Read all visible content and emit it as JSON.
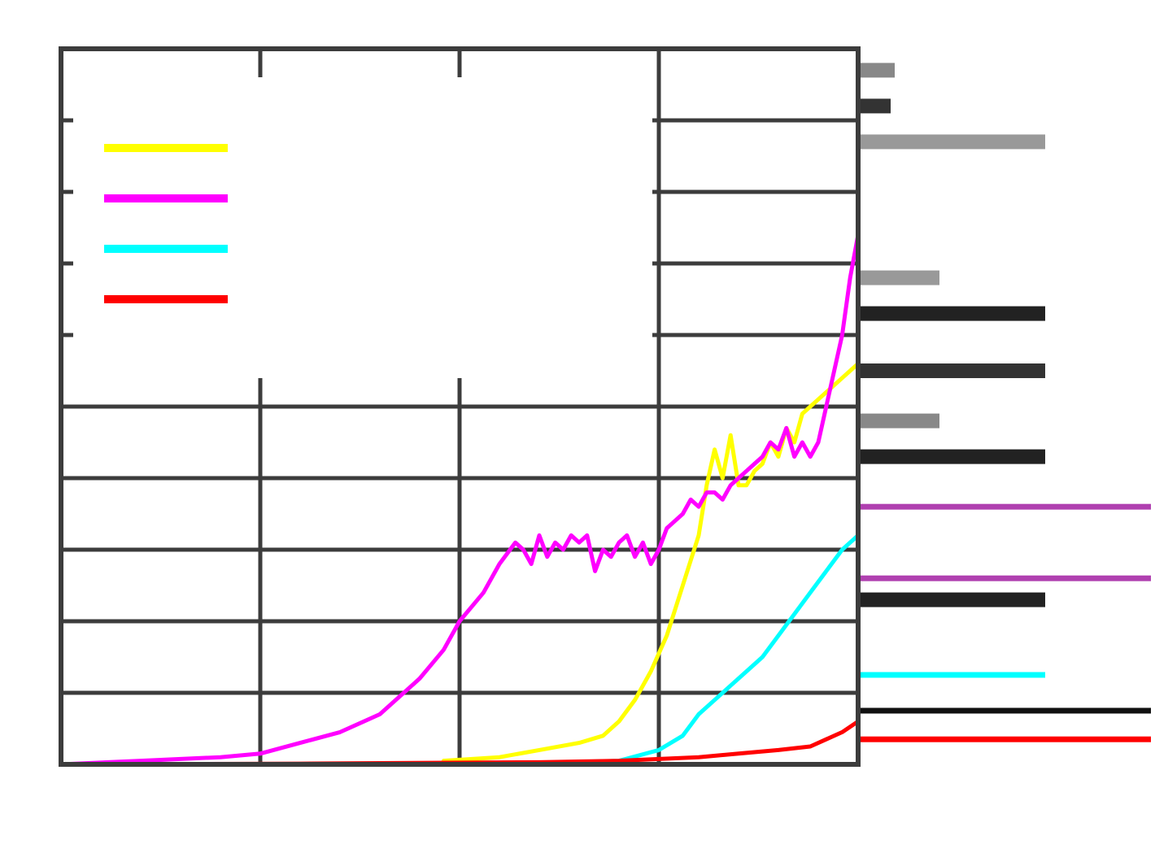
{
  "chart_data": {
    "type": "line",
    "title": "",
    "xlabel": "",
    "ylabel": "",
    "grid": true,
    "legend_placement": "top-left",
    "xlim": [
      0,
      100
    ],
    "ylim": [
      0,
      10
    ],
    "series": [
      {
        "color": "#ffff00",
        "points": [
          [
            48,
            0.05
          ],
          [
            55,
            0.1
          ],
          [
            60,
            0.2
          ],
          [
            65,
            0.3
          ],
          [
            68,
            0.4
          ],
          [
            70,
            0.6
          ],
          [
            72,
            0.9
          ],
          [
            74,
            1.3
          ],
          [
            76,
            1.8
          ],
          [
            78,
            2.5
          ],
          [
            80,
            3.2
          ],
          [
            81,
            3.9
          ],
          [
            82,
            4.4
          ],
          [
            83,
            4.0
          ],
          [
            84,
            4.6
          ],
          [
            85,
            3.9
          ],
          [
            86,
            3.9
          ],
          [
            87,
            4.1
          ],
          [
            88,
            4.2
          ],
          [
            89,
            4.5
          ],
          [
            90,
            4.3
          ],
          [
            91,
            4.7
          ],
          [
            92,
            4.5
          ],
          [
            93,
            4.9
          ],
          [
            94,
            5.0
          ],
          [
            95,
            5.1
          ],
          [
            96,
            5.2
          ],
          [
            97,
            5.3
          ],
          [
            98,
            5.4
          ],
          [
            99,
            5.5
          ],
          [
            100,
            5.6
          ]
        ]
      },
      {
        "color": "#ff00ff",
        "points": [
          [
            0,
            0
          ],
          [
            10,
            0.05
          ],
          [
            20,
            0.1
          ],
          [
            25,
            0.15
          ],
          [
            30,
            0.3
          ],
          [
            35,
            0.45
          ],
          [
            40,
            0.7
          ],
          [
            45,
            1.2
          ],
          [
            48,
            1.6
          ],
          [
            50,
            2.0
          ],
          [
            53,
            2.4
          ],
          [
            55,
            2.8
          ],
          [
            57,
            3.1
          ],
          [
            58,
            3.0
          ],
          [
            59,
            2.8
          ],
          [
            60,
            3.2
          ],
          [
            61,
            2.9
          ],
          [
            62,
            3.1
          ],
          [
            63,
            3.0
          ],
          [
            64,
            3.2
          ],
          [
            65,
            3.1
          ],
          [
            66,
            3.2
          ],
          [
            67,
            2.7
          ],
          [
            68,
            3.0
          ],
          [
            69,
            2.9
          ],
          [
            70,
            3.1
          ],
          [
            71,
            3.2
          ],
          [
            72,
            2.9
          ],
          [
            73,
            3.1
          ],
          [
            74,
            2.8
          ],
          [
            75,
            3.0
          ],
          [
            76,
            3.3
          ],
          [
            77,
            3.4
          ],
          [
            78,
            3.5
          ],
          [
            79,
            3.7
          ],
          [
            80,
            3.6
          ],
          [
            81,
            3.8
          ],
          [
            82,
            3.8
          ],
          [
            83,
            3.7
          ],
          [
            84,
            3.9
          ],
          [
            85,
            4.0
          ],
          [
            86,
            4.1
          ],
          [
            87,
            4.2
          ],
          [
            88,
            4.3
          ],
          [
            89,
            4.5
          ],
          [
            90,
            4.4
          ],
          [
            91,
            4.7
          ],
          [
            92,
            4.3
          ],
          [
            93,
            4.5
          ],
          [
            94,
            4.3
          ],
          [
            95,
            4.5
          ],
          [
            96,
            5.0
          ],
          [
            97,
            5.5
          ],
          [
            98,
            6.0
          ],
          [
            99,
            6.8
          ],
          [
            100,
            7.4
          ]
        ]
      },
      {
        "color": "#00ffff",
        "points": [
          [
            60,
            0.02
          ],
          [
            70,
            0.05
          ],
          [
            75,
            0.2
          ],
          [
            78,
            0.4
          ],
          [
            80,
            0.7
          ],
          [
            82,
            0.9
          ],
          [
            84,
            1.1
          ],
          [
            86,
            1.3
          ],
          [
            88,
            1.5
          ],
          [
            90,
            1.8
          ],
          [
            92,
            2.1
          ],
          [
            94,
            2.4
          ],
          [
            96,
            2.7
          ],
          [
            98,
            3.0
          ],
          [
            100,
            3.2
          ]
        ]
      },
      {
        "color": "#ff0000",
        "points": [
          [
            0,
            0
          ],
          [
            30,
            0.01
          ],
          [
            60,
            0.03
          ],
          [
            70,
            0.05
          ],
          [
            80,
            0.1
          ],
          [
            85,
            0.15
          ],
          [
            90,
            0.2
          ],
          [
            94,
            0.25
          ],
          [
            96,
            0.35
          ],
          [
            98,
            0.45
          ],
          [
            100,
            0.6
          ]
        ]
      }
    ],
    "right_bars": [
      {
        "color": "#888888",
        "y": 9.7,
        "length": 0.45
      },
      {
        "color": "#333333",
        "y": 9.2,
        "length": 0.4
      },
      {
        "color": "#999999",
        "y": 8.7,
        "length": 2.3
      },
      {
        "color": "#999999",
        "y": 6.8,
        "length": 1.0
      },
      {
        "color": "#222222",
        "y": 6.3,
        "length": 2.3
      },
      {
        "color": "#333333",
        "y": 5.5,
        "length": 2.3
      },
      {
        "color": "#888888",
        "y": 4.8,
        "length": 1.0
      },
      {
        "color": "#222222",
        "y": 4.3,
        "length": 2.3
      },
      {
        "color": "#b040b0",
        "y": 3.6,
        "length": 3.6
      },
      {
        "color": "#b040b0",
        "y": 2.6,
        "length": 3.6
      },
      {
        "color": "#222222",
        "y": 2.3,
        "length": 2.3
      },
      {
        "color": "#00ffff",
        "y": 1.25,
        "length": 2.3
      },
      {
        "color": "#111111",
        "y": 0.75,
        "length": 3.6
      },
      {
        "color": "#ff0000",
        "y": 0.35,
        "length": 3.6
      }
    ]
  },
  "legend": {
    "items": [
      {
        "color": "#ffff00",
        "label": ""
      },
      {
        "color": "#ff00ff",
        "label": ""
      },
      {
        "color": "#00ffff",
        "label": ""
      },
      {
        "color": "#ff0000",
        "label": ""
      }
    ]
  }
}
